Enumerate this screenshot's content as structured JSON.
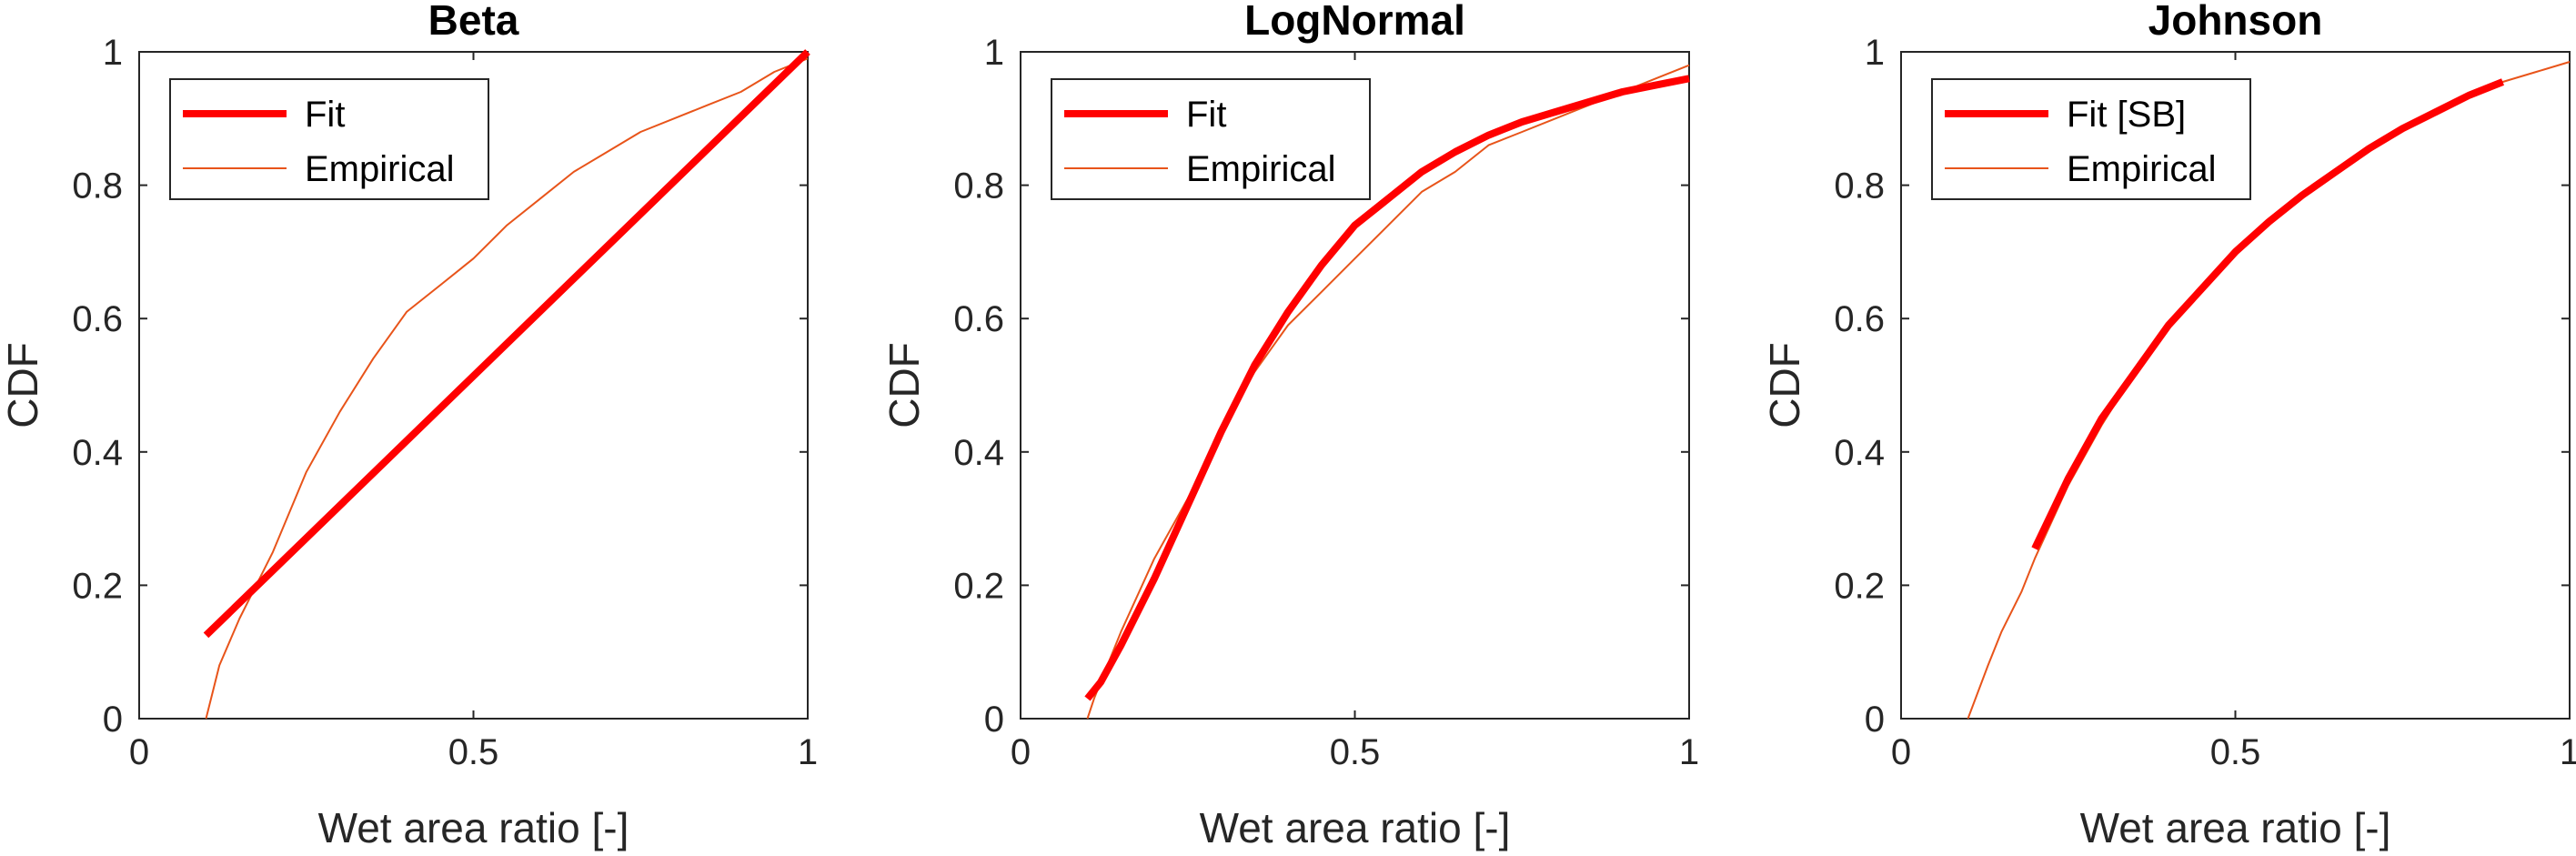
{
  "chart_data": [
    {
      "type": "line",
      "title": "Beta",
      "xlabel": "Wet area ratio [-]",
      "ylabel": "CDF",
      "xlim": [
        0,
        1
      ],
      "ylim": [
        0,
        1
      ],
      "xticks": [
        "0",
        "0.5",
        "1"
      ],
      "yticks": [
        "0",
        "0.2",
        "0.4",
        "0.6",
        "0.8",
        "1"
      ],
      "legend_position": "top-left",
      "series": [
        {
          "name": "Fit",
          "color": "#ff0000",
          "style": "thick",
          "x": [
            0.1,
            1.0
          ],
          "y": [
            0.125,
            1.0
          ]
        },
        {
          "name": "Empirical",
          "color": "#e8541a",
          "style": "thin",
          "x": [
            0.1,
            0.12,
            0.15,
            0.2,
            0.25,
            0.3,
            0.35,
            0.4,
            0.45,
            0.5,
            0.55,
            0.6,
            0.65,
            0.7,
            0.75,
            0.8,
            0.85,
            0.9,
            0.95,
            1.0
          ],
          "y": [
            0.0,
            0.08,
            0.15,
            0.25,
            0.37,
            0.46,
            0.54,
            0.61,
            0.65,
            0.69,
            0.74,
            0.78,
            0.82,
            0.85,
            0.88,
            0.9,
            0.92,
            0.94,
            0.97,
            0.99
          ]
        }
      ]
    },
    {
      "type": "line",
      "title": "LogNormal",
      "xlabel": "Wet area ratio [-]",
      "ylabel": "CDF",
      "xlim": [
        0,
        1
      ],
      "ylim": [
        0,
        1
      ],
      "xticks": [
        "0",
        "0.5",
        "1"
      ],
      "yticks": [
        "0",
        "0.2",
        "0.4",
        "0.6",
        "0.8",
        "1"
      ],
      "legend_position": "top-left",
      "series": [
        {
          "name": "Fit",
          "color": "#ff0000",
          "style": "thick",
          "x": [
            0.1,
            0.12,
            0.15,
            0.2,
            0.25,
            0.3,
            0.35,
            0.4,
            0.45,
            0.5,
            0.55,
            0.6,
            0.65,
            0.7,
            0.75,
            0.8,
            0.85,
            0.9,
            0.95,
            1.0
          ],
          "y": [
            0.03,
            0.055,
            0.11,
            0.21,
            0.32,
            0.43,
            0.53,
            0.61,
            0.68,
            0.74,
            0.78,
            0.82,
            0.85,
            0.875,
            0.895,
            0.91,
            0.925,
            0.94,
            0.95,
            0.96
          ]
        },
        {
          "name": "Empirical",
          "color": "#e8541a",
          "style": "thin",
          "x": [
            0.1,
            0.11,
            0.13,
            0.15,
            0.2,
            0.25,
            0.3,
            0.35,
            0.4,
            0.45,
            0.5,
            0.55,
            0.6,
            0.65,
            0.7,
            0.75,
            0.8,
            0.85,
            0.9,
            0.95,
            1.0
          ],
          "y": [
            0.0,
            0.03,
            0.08,
            0.13,
            0.24,
            0.33,
            0.43,
            0.52,
            0.59,
            0.64,
            0.69,
            0.74,
            0.79,
            0.82,
            0.86,
            0.88,
            0.9,
            0.92,
            0.94,
            0.96,
            0.98
          ]
        }
      ]
    },
    {
      "type": "line",
      "title": "Johnson",
      "xlabel": "Wet area ratio [-]",
      "ylabel": "CDF",
      "xlim": [
        0,
        1
      ],
      "ylim": [
        0,
        1
      ],
      "xticks": [
        "0",
        "0.5",
        "1"
      ],
      "yticks": [
        "0",
        "0.2",
        "0.4",
        "0.6",
        "0.8",
        "1"
      ],
      "legend_position": "top-left",
      "series": [
        {
          "name": "Fit [SB]",
          "color": "#ff0000",
          "style": "thick",
          "x": [
            0.2,
            0.25,
            0.3,
            0.35,
            0.4,
            0.45,
            0.5,
            0.55,
            0.6,
            0.65,
            0.7,
            0.75,
            0.8,
            0.85,
            0.9
          ],
          "y": [
            0.255,
            0.36,
            0.45,
            0.52,
            0.59,
            0.645,
            0.7,
            0.745,
            0.785,
            0.82,
            0.855,
            0.885,
            0.91,
            0.935,
            0.955
          ]
        },
        {
          "name": "Empirical",
          "color": "#e8541a",
          "style": "thin",
          "x": [
            0.1,
            0.13,
            0.15,
            0.18,
            0.2,
            0.25,
            0.3,
            0.35,
            0.4,
            0.45,
            0.5,
            0.55,
            0.6,
            0.65,
            0.7,
            0.75,
            0.8,
            0.85,
            0.9,
            0.95,
            1.0
          ],
          "y": [
            0.0,
            0.08,
            0.13,
            0.19,
            0.24,
            0.35,
            0.44,
            0.52,
            0.59,
            0.645,
            0.7,
            0.745,
            0.785,
            0.82,
            0.855,
            0.885,
            0.91,
            0.935,
            0.955,
            0.97,
            0.985
          ]
        }
      ]
    }
  ]
}
